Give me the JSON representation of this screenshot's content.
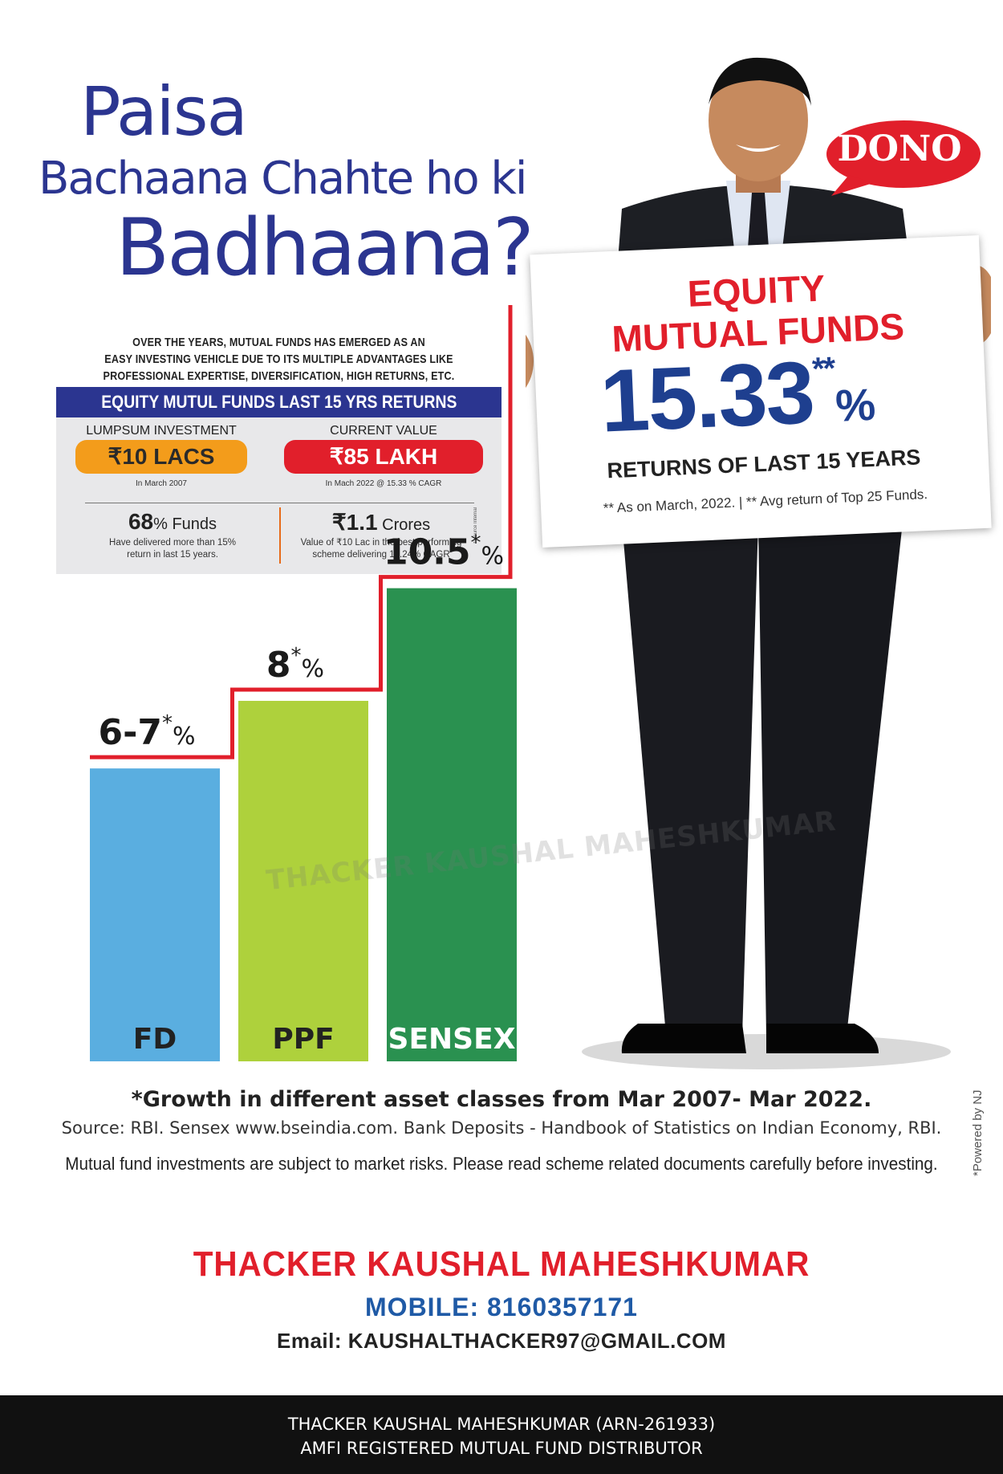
{
  "headline": {
    "line1": "Paisa",
    "line2": "Bachaana Chahte ho ki",
    "line3": "Badhaana?"
  },
  "bubble": {
    "text": "DONO",
    "color": "#e11f2b"
  },
  "board": {
    "line1": "EQUITY",
    "line2": "MUTUAL FUNDS",
    "rate": "15.33",
    "rate_stars": "**",
    "rate_pct": "%",
    "returns_label": "RETURNS OF LAST 15 YEARS",
    "note": "** As on March, 2022. | ** Avg return of  Top 25 Funds."
  },
  "intro": {
    "line1": "OVER THE YEARS, MUTUAL FUNDS HAS EMERGED AS AN",
    "line2": "EASY INVESTING VEHICLE DUE TO ITS MULTIPLE ADVANTAGES LIKE",
    "line3": "PROFESSIONAL EXPERTISE, DIVERSIFICATION, HIGH RETURNS, ETC."
  },
  "infobox": {
    "title": "EQUITY MUTUL FUNDS LAST 15 YRS RETURNS",
    "lumpsum_label": "LUMPSUM INVESTMENT",
    "current_label": "CURRENT VALUE",
    "lumpsum_value": "₹10 LACS",
    "current_value": "₹85 LAKH",
    "lumpsum_note": "In March 2007",
    "current_note": "In Mach 2022 @ 15.33 % CAGR",
    "stat1_value": "68",
    "stat1_unit": "% Funds",
    "stat1_desc_1": "Have delivered more than 15%",
    "stat1_desc_2": "return in last 15 years.",
    "stat2_value": "₹1.1",
    "stat2_unit": " Crores",
    "stat2_desc_1": "Value of ₹10 Lac in the best performing",
    "stat2_desc_2": "scheme delivering 17.24% CAGR",
    "side_note": "* Source Internal",
    "bar_color": "#2b3590"
  },
  "chart_data": {
    "type": "bar",
    "categories": [
      "FD",
      "PPF",
      "SENSEX"
    ],
    "values": [
      6.5,
      8,
      10.5
    ],
    "value_labels": [
      {
        "main": "6-7",
        "star": "*",
        "unit": "%"
      },
      {
        "main": "8",
        "star": "*",
        "unit": "%"
      },
      {
        "main": "10.5",
        "star": "*",
        "unit": "%"
      }
    ],
    "colors": [
      "#5aaee0",
      "#aed13c",
      "#2a9150"
    ],
    "step_line_color": "#e11f2b",
    "ylim": [
      0,
      12
    ],
    "title": "",
    "xlabel": "",
    "ylabel": ""
  },
  "watermark": "THACKER KAUSHAL MAHESHKUMAR",
  "footnotes": {
    "growth": "*Growth in different asset classes from Mar 2007- Mar 2022.",
    "source": "Source: RBI. Sensex www.bseindia.com. Bank Deposits - Handbook of Statistics on Indian Economy, RBI.",
    "disclaimer": "Mutual fund investments are subject to market risks. Please read scheme related documents carefully before investing.",
    "powered": "*Powered by NJ"
  },
  "contact": {
    "name": "THACKER KAUSHAL MAHESHKUMAR",
    "mobile": "MOBILE: 8160357171",
    "email": "Email: KAUSHALTHACKER97@GMAIL.COM"
  },
  "footer": {
    "line1": "THACKER KAUSHAL MAHESHKUMAR (ARN-261933)",
    "line2": "AMFI REGISTERED MUTUAL FUND DISTRIBUTOR"
  }
}
